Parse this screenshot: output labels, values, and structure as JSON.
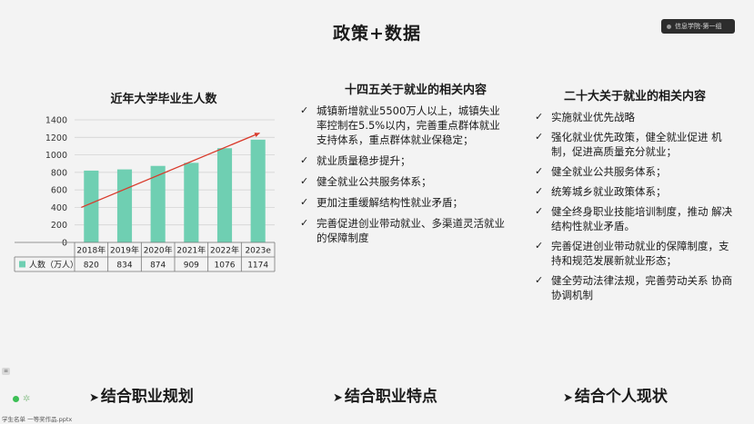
{
  "slide": {
    "title": "政策+数据"
  },
  "video_badge": {
    "label": "信息学院-第一组"
  },
  "chart_data": {
    "type": "bar",
    "title": "近年大学毕业生人数",
    "categories": [
      "2018年",
      "2019年",
      "2020年",
      "2021年",
      "2022年",
      "2023e"
    ],
    "series": [
      {
        "name": "人数（万人）",
        "values": [
          820,
          834,
          874,
          909,
          1076,
          1174
        ],
        "color": "#6fcfb2"
      }
    ],
    "yticks": [
      "0",
      "200",
      "400",
      "600",
      "800",
      "1000",
      "1200",
      "1400"
    ],
    "ylim": [
      0,
      1400
    ],
    "grid": true,
    "data_table": true,
    "trend_arrow_color": "#d93a2b"
  },
  "middle": {
    "heading": "十四五关于就业的相关内容",
    "items": [
      "城镇新增就业5500万人以上，城镇失业率控制在5.5%以内，完善重点群体就业支持体系，重点群体就业保稳定；",
      "就业质量稳步提升；",
      "健全就业公共服务体系；",
      "更加注重缓解结构性就业矛盾；",
      "完善促进创业带动就业、多渠道灵活就业的保障制度"
    ]
  },
  "right": {
    "heading": "二十大关于就业的相关内容",
    "items": [
      "实施就业优先战略",
      "强化就业优先政策，健全就业促进 机制，促进高质量充分就业；",
      "健全就业公共服务体系；",
      "统筹城乡就业政策体系；",
      "健全终身职业技能培训制度，推动 解决结构性就业矛盾。",
      "完善促进创业带动就业的保障制度，支持和规范发展新就业形态；",
      "健全劳动法律法规，完善劳动关系 协商协调机制"
    ]
  },
  "bottom": {
    "arrow": "➤",
    "labels": [
      "结合职业规划",
      "结合职业特点",
      "结合个人现状"
    ]
  },
  "side": {
    "chip": "≡"
  },
  "footer": {
    "text": "学生名单 一等奖作品.pptx"
  }
}
